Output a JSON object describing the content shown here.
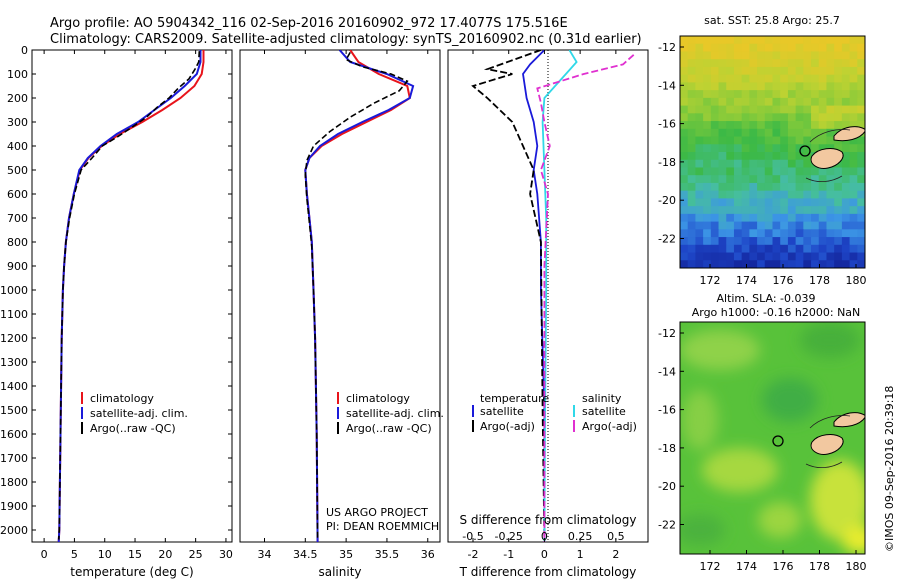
{
  "header": {
    "line1": "Argo profile: AO 5904342_116 02-Sep-2016 20160902_972 17.4077S 175.516E",
    "line2": "Climatology: CARS2009. Satellite-adjusted climatology: synTS_20160902.nc (0.31d earlier)"
  },
  "colors": {
    "climatology": "#e8141b",
    "satellite": "#1a1ad9",
    "argo": "#000000",
    "sal_sat": "#30d8e8",
    "sal_argo": "#e030d0",
    "land": "#f2c8a0"
  },
  "chart_data": [
    {
      "type": "line",
      "xlabel": "temperature (deg C)",
      "xlim": [
        -2,
        31
      ],
      "ylim": [
        2050,
        0
      ],
      "xticks": [
        "0",
        "5",
        "10",
        "15",
        "20",
        "25",
        "30"
      ],
      "yticks": [
        "0",
        "100",
        "200",
        "300",
        "400",
        "500",
        "600",
        "700",
        "800",
        "900",
        "1000",
        "1100",
        "1200",
        "1300",
        "1400",
        "1500",
        "1600",
        "1700",
        "1800",
        "1900",
        "2000"
      ],
      "legend": [
        "climatology",
        "satellite-adj. clim.",
        "Argo(..raw -QC)"
      ],
      "series": [
        {
          "name": "climatology",
          "x": [
            26.3,
            26.3,
            26.0,
            24.8,
            22.5,
            19.5,
            16.2,
            12.5,
            9.5,
            7.3,
            5.9,
            4.9,
            4.1,
            3.6,
            3.3,
            3.1,
            2.9,
            2.8,
            2.7,
            2.6,
            2.5,
            2.4
          ],
          "y": [
            0,
            50,
            100,
            150,
            200,
            250,
            300,
            350,
            400,
            450,
            500,
            600,
            700,
            800,
            900,
            1000,
            1200,
            1400,
            1600,
            1800,
            2000,
            2050
          ]
        },
        {
          "name": "satellite-adj. clim.",
          "x": [
            25.8,
            25.8,
            25.2,
            23.2,
            20.9,
            18.2,
            15.5,
            12.0,
            9.3,
            7.2,
            5.8,
            4.9,
            4.1,
            3.6,
            3.3,
            3.1,
            2.9,
            2.8,
            2.7,
            2.6,
            2.5,
            2.4
          ],
          "y": [
            0,
            50,
            100,
            150,
            200,
            250,
            300,
            350,
            400,
            450,
            500,
            600,
            700,
            800,
            900,
            1000,
            1200,
            1400,
            1600,
            1800,
            2000,
            2050
          ]
        },
        {
          "name": "Argo(..raw -QC)",
          "x": [
            25.6,
            25.5,
            24.9,
            23.9,
            22.1,
            20.6,
            18.6,
            16.9,
            14.6,
            12.2,
            9.6,
            7.9,
            6.1,
            5.0,
            4.2,
            3.6,
            3.3,
            3.1,
            2.9,
            2.8,
            2.7,
            2.6,
            2.5,
            2.4
          ],
          "y": [
            5,
            50,
            80,
            120,
            160,
            200,
            240,
            280,
            320,
            360,
            400,
            450,
            500,
            600,
            700,
            800,
            900,
            1000,
            1200,
            1400,
            1600,
            1800,
            2000,
            2040
          ]
        }
      ]
    },
    {
      "type": "line",
      "xlabel": "salinity",
      "xlim": [
        33.7,
        36.15
      ],
      "ylim": [
        2050,
        0
      ],
      "xticks": [
        "34",
        "34.5",
        "35",
        "35.5",
        "36"
      ],
      "legend": [
        "climatology",
        "satellite-adj. clim.",
        "Argo(..raw -QC)"
      ],
      "annotation": [
        "US ARGO PROJECT",
        "PI: DEAN ROEMMICH"
      ],
      "series": [
        {
          "name": "climatology",
          "x": [
            35.05,
            35.15,
            35.4,
            35.75,
            35.78,
            35.55,
            35.25,
            34.95,
            34.7,
            34.55,
            34.5,
            34.52,
            34.55,
            34.58,
            34.6,
            34.62,
            34.64,
            34.65
          ],
          "y": [
            0,
            50,
            100,
            150,
            200,
            250,
            300,
            350,
            400,
            450,
            500,
            600,
            700,
            800,
            1000,
            1200,
            1600,
            2050
          ]
        },
        {
          "name": "satellite-adj. clim.",
          "x": [
            34.92,
            35.05,
            35.5,
            35.82,
            35.78,
            35.52,
            35.2,
            34.9,
            34.68,
            34.55,
            34.5,
            34.52,
            34.55,
            34.58,
            34.6,
            34.62,
            34.64,
            34.65
          ],
          "y": [
            0,
            50,
            100,
            150,
            200,
            250,
            300,
            350,
            400,
            450,
            500,
            600,
            700,
            800,
            1000,
            1200,
            1600,
            2050
          ]
        },
        {
          "name": "Argo(..raw -QC)",
          "x": [
            35.05,
            35.0,
            35.2,
            35.55,
            35.75,
            35.65,
            35.35,
            35.05,
            34.8,
            34.6,
            34.52,
            34.5,
            34.52,
            34.55,
            34.58,
            34.6,
            34.62,
            34.64,
            34.65
          ],
          "y": [
            10,
            40,
            70,
            100,
            130,
            170,
            220,
            280,
            340,
            400,
            460,
            520,
            620,
            720,
            820,
            1000,
            1200,
            1600,
            2040
          ]
        }
      ]
    },
    {
      "type": "line",
      "xlabel": "T difference from climatology",
      "xlabel_top": "S difference from climatology",
      "xlim": [
        -2.7,
        2.9
      ],
      "ylim": [
        2050,
        0
      ],
      "xticks": [
        "-2",
        "-1",
        "0",
        "1",
        "2"
      ],
      "xticks_sal": [
        "-0.5",
        "-0.25",
        "0",
        "0.25",
        "0.5"
      ],
      "legend_t": [
        "temperature",
        "satellite",
        "Argo(-adj)"
      ],
      "legend_s": [
        "salinity",
        "satellite",
        "Argo(-adj)"
      ],
      "series": [
        {
          "name": "satellite",
          "x": [
            0.0,
            -0.4,
            -0.6,
            -0.5,
            -0.3,
            -0.2,
            -0.3,
            -0.2,
            -0.1,
            -0.1,
            0,
            0
          ],
          "y": [
            0,
            60,
            100,
            200,
            300,
            400,
            500,
            600,
            800,
            1000,
            1500,
            2050
          ]
        },
        {
          "name": "Argo(-adj)",
          "x": [
            -0.1,
            -1.6,
            -0.9,
            -2.0,
            -1.6,
            -0.9,
            -0.6,
            -0.3,
            -0.4,
            -0.1,
            -0.05,
            0
          ],
          "y": [
            0,
            80,
            100,
            150,
            200,
            300,
            400,
            500,
            600,
            800,
            1500,
            2050
          ]
        },
        {
          "name": "satellite",
          "x": [
            0.7,
            0.9,
            0.6,
            0.3,
            0.0,
            -0.05,
            0,
            0.05,
            0.05,
            0.02,
            0
          ],
          "y": [
            0,
            50,
            100,
            150,
            200,
            300,
            500,
            700,
            1000,
            1500,
            2050
          ]
        },
        {
          "name": "Argo(-adj)",
          "x": [
            2.5,
            2.2,
            1.1,
            -0.2,
            -0.1,
            0.0,
            0.15,
            -0.1,
            0.1,
            0,
            0
          ],
          "y": [
            20,
            60,
            100,
            160,
            220,
            300,
            400,
            500,
            600,
            900,
            2050
          ]
        }
      ]
    },
    {
      "type": "heatmap",
      "title": "sat. SST: 25.8  Argo: 25.7",
      "xticks": [
        "172",
        "174",
        "176",
        "178",
        "180"
      ],
      "yticks": [
        "-12",
        "-14",
        "-16",
        "-18",
        "-20",
        "-22"
      ],
      "marker": {
        "lon": 175.5,
        "lat": -17.4
      }
    },
    {
      "type": "heatmap",
      "title": "Altim. SLA: -0.039",
      "subtitle": "Argo h1000: -0.16  h2000: NaN",
      "xticks": [
        "172",
        "174",
        "176",
        "178",
        "180"
      ],
      "yticks": [
        "-12",
        "-14",
        "-16",
        "-18",
        "-20",
        "-22"
      ],
      "marker": {
        "lon": 175.5,
        "lat": -17.4
      }
    }
  ],
  "credit": "©IMOS 09-Sep-2016 20:39:18"
}
